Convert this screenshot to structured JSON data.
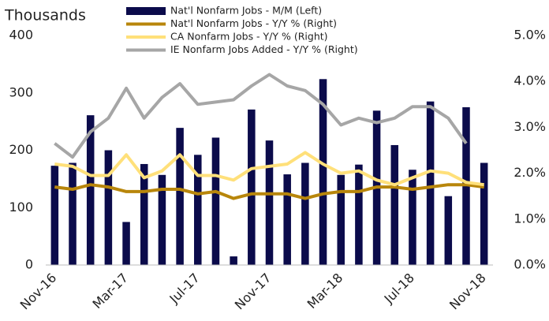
{
  "chart_data": {
    "type": "bar-line",
    "y_label": "Thousands",
    "categories": [
      "Nov-16",
      null,
      null,
      null,
      "Mar-17",
      null,
      null,
      null,
      "Jul-17",
      null,
      null,
      null,
      "Nov-17",
      null,
      null,
      null,
      "Mar-18",
      null,
      null,
      null,
      "Jul-18",
      null,
      null,
      null,
      "Nov-18"
    ],
    "ylim": [
      0,
      400
    ],
    "yticks": [
      0,
      100,
      200,
      300,
      400
    ],
    "y2lim": [
      0,
      5
    ],
    "y2ticks": [
      {
        "value": 0,
        "label": "0.0%"
      },
      {
        "value": 1,
        "label": "1.0%"
      },
      {
        "value": 2,
        "label": "2.0%"
      },
      {
        "value": 3,
        "label": "3.0%"
      },
      {
        "value": 4,
        "label": "4.0%"
      },
      {
        "value": 5,
        "label": "5.0%"
      }
    ],
    "legend": "top",
    "series": [
      {
        "name": "Nat'l Nonfarm Jobs - M/M (Left)",
        "type": "bar",
        "color": "#0b0b4b",
        "values": [
          173,
          178,
          261,
          200,
          75,
          176,
          157,
          239,
          192,
          222,
          15,
          271,
          217,
          158,
          178,
          324,
          157,
          175,
          269,
          209,
          166,
          285,
          120,
          275,
          178
        ]
      },
      {
        "name": "Nat'l Nonfarm Jobs - Y/Y % (Right)",
        "type": "line",
        "axis": "y2",
        "color": "#b8860b",
        "values": [
          1.7,
          1.65,
          1.75,
          1.7,
          1.6,
          1.6,
          1.65,
          1.65,
          1.55,
          1.6,
          1.45,
          1.55,
          1.55,
          1.55,
          1.45,
          1.55,
          1.6,
          1.6,
          1.7,
          1.7,
          1.65,
          1.7,
          1.75,
          1.75,
          1.7
        ]
      },
      {
        "name": "CA Nonfarm Jobs - Y/Y % (Right)",
        "type": "line",
        "axis": "y2",
        "color": "#ffe07a",
        "values": [
          2.2,
          2.15,
          1.95,
          1.95,
          2.4,
          1.9,
          2.05,
          2.4,
          1.95,
          1.95,
          1.85,
          2.1,
          2.15,
          2.2,
          2.45,
          2.2,
          2.0,
          2.05,
          1.85,
          1.75,
          1.9,
          2.05,
          2.0,
          1.8,
          1.75
        ]
      },
      {
        "name": "IE Nonfarm Jobs Added - Y/Y % (Right)",
        "type": "line",
        "axis": "y2",
        "color": "#a6a6a6",
        "values": [
          2.65,
          2.35,
          2.9,
          3.2,
          3.85,
          3.2,
          3.65,
          3.95,
          3.5,
          3.55,
          3.6,
          3.9,
          4.15,
          3.9,
          3.8,
          3.5,
          3.05,
          3.2,
          3.1,
          3.2,
          3.45,
          3.45,
          3.2,
          2.65,
          null
        ]
      }
    ]
  }
}
